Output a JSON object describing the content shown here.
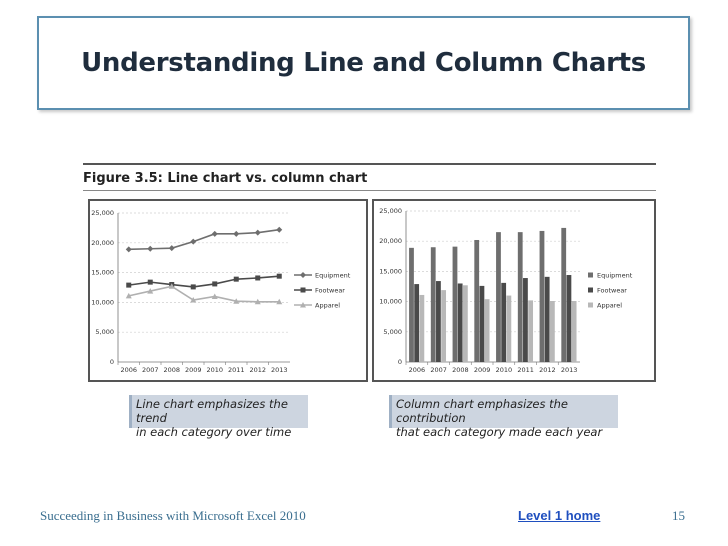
{
  "slide": {
    "title": "Understanding Line and Column Charts",
    "figure_title": "Figure 3.5: Line chart vs. column chart",
    "line_caption": [
      "Line chart emphasizes the trend",
      "in each category over time"
    ],
    "column_caption": [
      "Column chart emphasizes the contribution",
      "that each category made each year"
    ],
    "footer_text": "Succeeding in Business with Microsoft Excel 2010",
    "footer_link": "Level 1 home",
    "page_number": "15"
  },
  "chart_data": [
    {
      "type": "line",
      "categories": [
        "2006",
        "2007",
        "2008",
        "2009",
        "2010",
        "2011",
        "2012",
        "2013"
      ],
      "y_ticks": [
        "0",
        "5,000",
        "10,000",
        "15,000",
        "20,000",
        "25,000"
      ],
      "ylim": [
        0,
        25000
      ],
      "legend_position": "right",
      "series": [
        {
          "name": "Equipment",
          "values": [
            18900,
            19000,
            19100,
            20200,
            21500,
            21500,
            21700,
            22200
          ],
          "color": "#6e6e6e",
          "marker": "diamond"
        },
        {
          "name": "Footwear",
          "values": [
            12900,
            13400,
            13000,
            12600,
            13100,
            13900,
            14100,
            14400
          ],
          "color": "#4a4a4a",
          "marker": "square"
        },
        {
          "name": "Apparel",
          "values": [
            11100,
            11900,
            12700,
            10400,
            11000,
            10200,
            10100,
            10100
          ],
          "color": "#b0b0b0",
          "marker": "triangle"
        }
      ]
    },
    {
      "type": "bar",
      "categories": [
        "2006",
        "2007",
        "2008",
        "2009",
        "2010",
        "2011",
        "2012",
        "2013"
      ],
      "y_ticks": [
        "0",
        "5,000",
        "10,000",
        "15,000",
        "20,000",
        "25,000"
      ],
      "ylim": [
        0,
        25000
      ],
      "legend_position": "right",
      "series": [
        {
          "name": "Equipment",
          "values": [
            18900,
            19000,
            19100,
            20200,
            21500,
            21500,
            21700,
            22200
          ],
          "color": "#6e6e6e"
        },
        {
          "name": "Footwear",
          "values": [
            12900,
            13400,
            13000,
            12600,
            13100,
            13900,
            14100,
            14400
          ],
          "color": "#4a4a4a"
        },
        {
          "name": "Apparel",
          "values": [
            11100,
            11900,
            12700,
            10400,
            11000,
            10200,
            10100,
            10100
          ],
          "color": "#b8b8b8"
        }
      ]
    }
  ]
}
